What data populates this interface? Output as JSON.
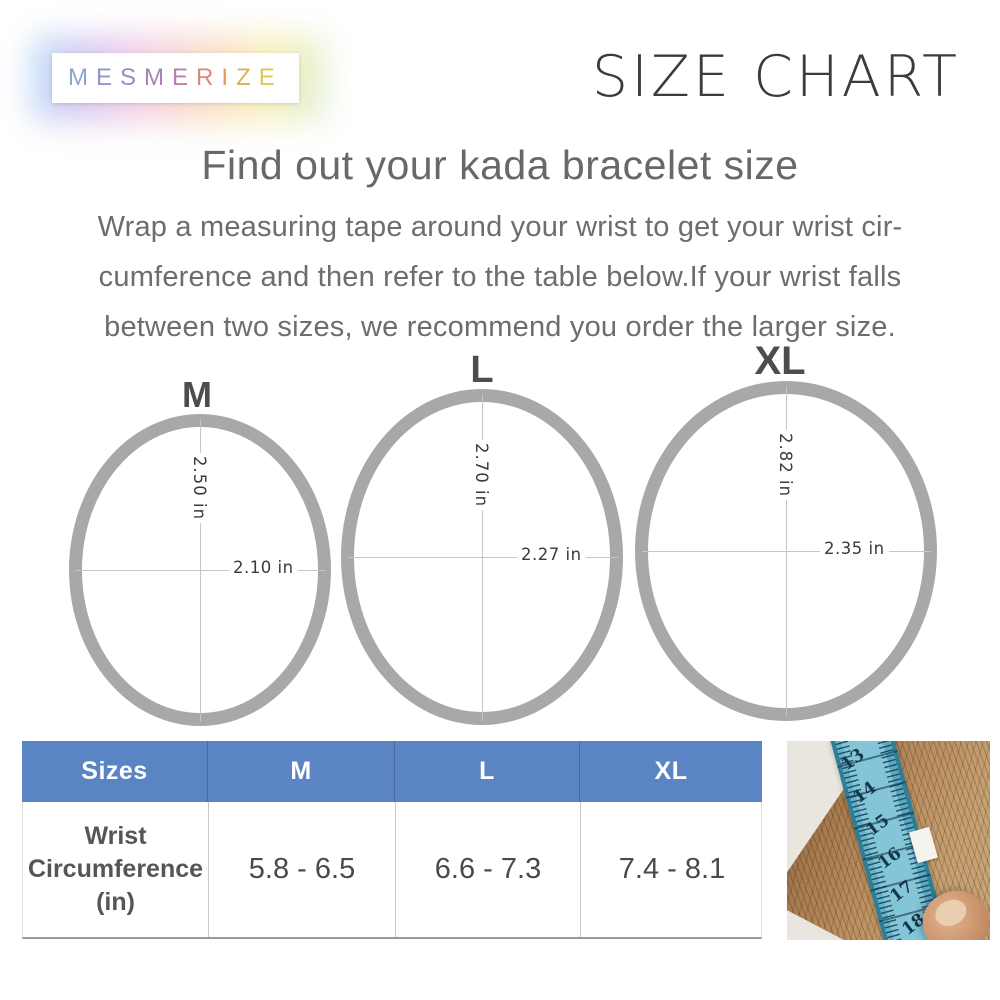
{
  "brand": {
    "name": "MESMERIZE",
    "letters": [
      {
        "ch": "M",
        "color": "#8ca6cb"
      },
      {
        "ch": "E",
        "color": "#9197c9"
      },
      {
        "ch": "S",
        "color": "#9b8ac3"
      },
      {
        "ch": "M",
        "color": "#a681bc"
      },
      {
        "ch": "E",
        "color": "#bb80a9"
      },
      {
        "ch": "R",
        "color": "#d9887f"
      },
      {
        "ch": "I",
        "color": "#e29a62"
      },
      {
        "ch": "Z",
        "color": "#dfae52"
      },
      {
        "ch": "E",
        "color": "#e2c653"
      }
    ]
  },
  "header": {
    "title": "SIZE CHART"
  },
  "intro": {
    "heading": "Find out your kada bracelet size",
    "line1": "Wrap a measuring tape around your wrist to get your wrist cir-",
    "line2": "cumference and then refer to the table below.If your wrist falls",
    "line3": "between two sizes, we recommend you order the larger size."
  },
  "rings": [
    {
      "label": "M",
      "vertical_diameter": "2.50 in",
      "horizontal_diameter": "2.10 in"
    },
    {
      "label": "L",
      "vertical_diameter": "2.70 in",
      "horizontal_diameter": "2.27 in"
    },
    {
      "label": "XL",
      "vertical_diameter": "2.82 in",
      "horizontal_diameter": "2.35 in"
    }
  ],
  "size_table": {
    "headers": [
      "Sizes",
      "M",
      "L",
      "XL"
    ],
    "row_label_line1": "Wrist",
    "row_label_line2": "Circumference",
    "row_label_line3": "(in)",
    "values": [
      "5.8 - 6.5",
      "6.6 - 7.3",
      "7.4 - 8.1"
    ]
  },
  "photo": {
    "tape_numbers": [
      "13",
      "14",
      "15",
      "16",
      "17",
      "18"
    ]
  },
  "colors": {
    "table_header_bg": "#5b84c4",
    "ring_stroke": "#a8a8a8",
    "title_text": "#3b3b3b",
    "tape_teal": "#63b2ca"
  }
}
